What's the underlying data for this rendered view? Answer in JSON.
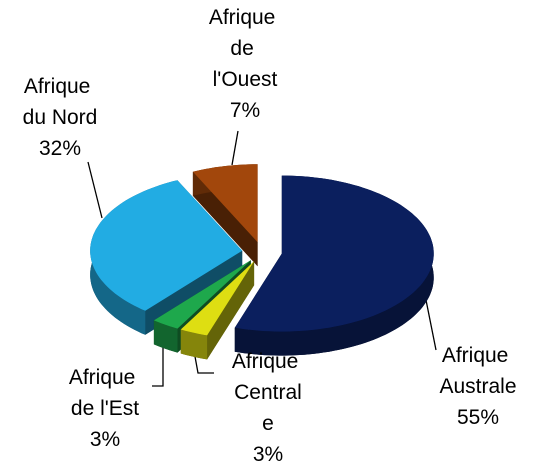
{
  "chart_data": {
    "type": "pie3d",
    "categories": [
      "Afrique Australe",
      "Afrique Centrale",
      "Afrique de l'Est",
      "Afrique du Nord",
      "Afrique de l'Ouest"
    ],
    "values": [
      55,
      3,
      3,
      32,
      7
    ],
    "value_labels": [
      "55%",
      "3%",
      "3%",
      "32%",
      "7%"
    ],
    "colors": [
      "#0b1f5e",
      "#dede12",
      "#1ea84c",
      "#22ace3",
      "#a2470c"
    ],
    "exploded": true
  }
}
